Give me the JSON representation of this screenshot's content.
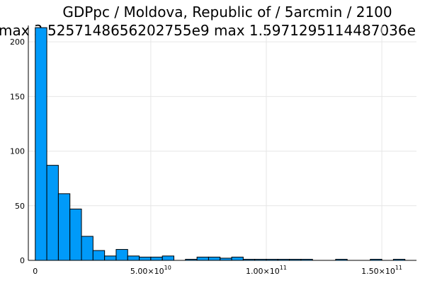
{
  "chart_data": {
    "type": "bar",
    "title": "GDPpc / Moldova, Republic of / 5arcmin / 2100",
    "subtitle": "max 2.5257148656202755e9  max 1.5971295114487036e",
    "xlabel": "",
    "ylabel": "",
    "xlim": [
      -3000000000,
      165000000000
    ],
    "ylim": [
      0,
      215
    ],
    "grid": true,
    "legend": "none",
    "bar_color": "#009af9",
    "bin_width": 5000000000,
    "bins_start": [
      0,
      5000000000,
      10000000000,
      15000000000,
      20000000000,
      25000000000,
      30000000000,
      35000000000,
      40000000000,
      45000000000,
      50000000000,
      55000000000,
      60000000000,
      65000000000,
      70000000000,
      75000000000,
      80000000000,
      85000000000,
      90000000000,
      95000000000,
      100000000000,
      105000000000,
      110000000000,
      115000000000,
      120000000000,
      125000000000,
      130000000000,
      135000000000,
      140000000000,
      145000000000,
      150000000000,
      155000000000
    ],
    "values": [
      213,
      87,
      61,
      47,
      22,
      9,
      4,
      10,
      4,
      3,
      3,
      4,
      0,
      1,
      3,
      3,
      2,
      3,
      1,
      1,
      1,
      1,
      1,
      1,
      0,
      0,
      1,
      0,
      0,
      1,
      0,
      1
    ],
    "y_ticks": [
      {
        "value": 0,
        "label": "0"
      },
      {
        "value": 50,
        "label": "50"
      },
      {
        "value": 100,
        "label": "100"
      },
      {
        "value": 150,
        "label": "150"
      },
      {
        "value": 200,
        "label": "200"
      }
    ],
    "x_ticks": [
      {
        "value": 0,
        "label": "0",
        "exp": ""
      },
      {
        "value": 50000000000,
        "label": "5.00×10",
        "exp": "10"
      },
      {
        "value": 100000000000,
        "label": "1.00×10",
        "exp": "11"
      },
      {
        "value": 150000000000,
        "label": "1.50×10",
        "exp": "11"
      }
    ]
  }
}
